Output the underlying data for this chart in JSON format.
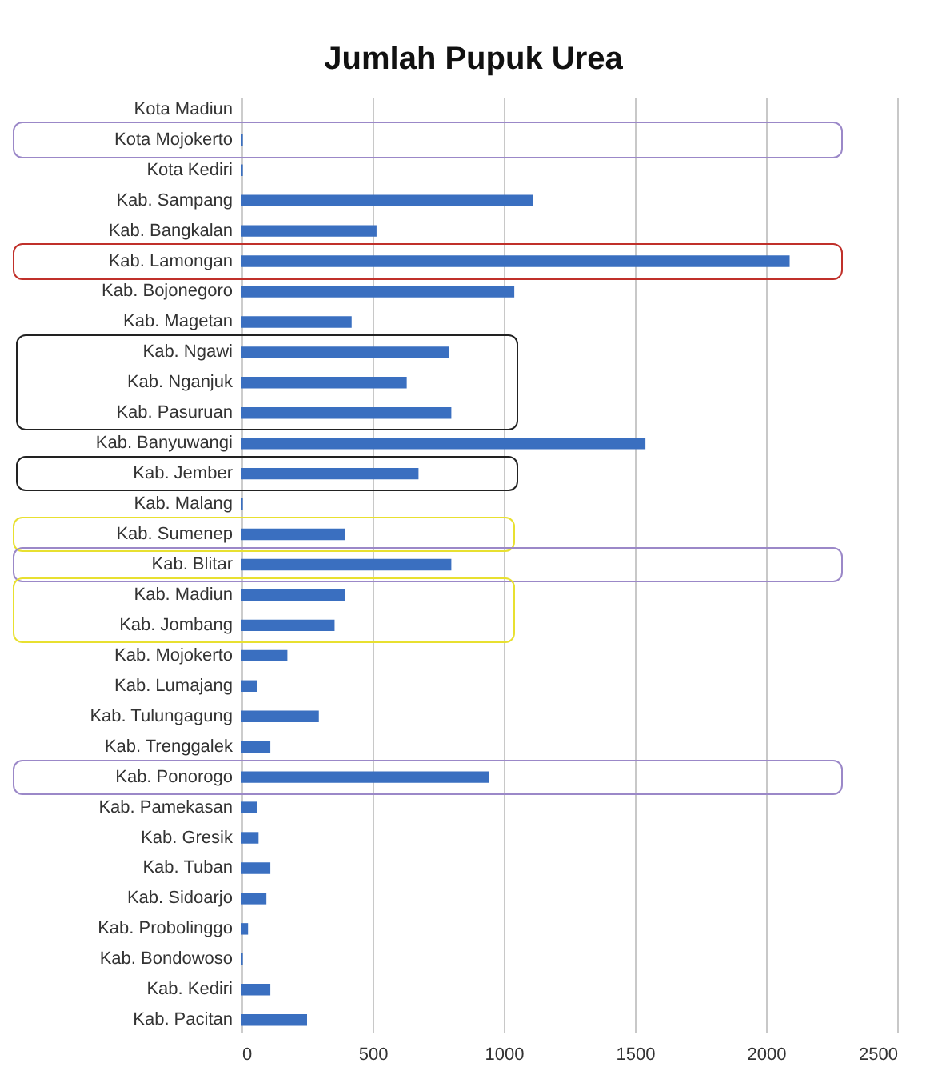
{
  "chart_data": {
    "type": "bar",
    "orientation": "horizontal",
    "title": "Jumlah Pupuk Urea",
    "categories": [
      "Kota Madiun",
      "Kota Mojokerto",
      "Kota Kediri",
      "Kab. Sampang",
      "Kab. Bangkalan",
      "Kab. Lamongan",
      "Kab. Bojonegoro",
      "Kab. Magetan",
      "Kab. Ngawi",
      "Kab. Nganjuk",
      "Kab. Pasuruan",
      "Kab. Banyuwangi",
      "Kab. Jember",
      "Kab. Malang",
      "Kab. Sumenep",
      "Kab. Blitar",
      "Kab. Madiun",
      "Kab. Jombang",
      "Kab. Mojokerto",
      "Kab. Lumajang",
      "Kab. Tulungagung",
      "Kab. Trenggalek",
      "Kab. Ponorogo",
      "Kab. Pamekasan",
      "Kab. Gresik",
      "Kab. Tuban",
      "Kab. Sidoarjo",
      "Kab. Probolinggo",
      "Kab. Bondowoso",
      "Kab. Kediri",
      "Kab. Pacitan"
    ],
    "values": [
      0,
      5,
      5,
      1110,
      515,
      2090,
      1040,
      420,
      790,
      630,
      800,
      1540,
      675,
      5,
      395,
      800,
      395,
      355,
      175,
      60,
      295,
      110,
      945,
      60,
      65,
      110,
      95,
      25,
      5,
      110,
      250
    ],
    "color": "#3a6fc0",
    "xlim": [
      0,
      2500
    ],
    "xticks": [
      0,
      500,
      1000,
      1500,
      2000,
      2500
    ],
    "grid": "x"
  }
}
